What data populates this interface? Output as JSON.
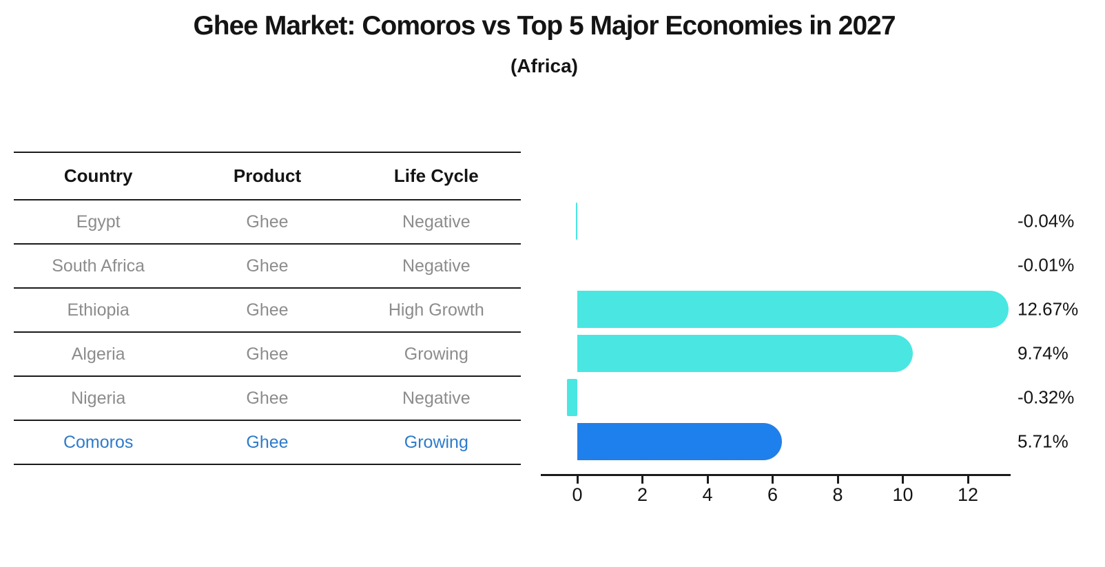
{
  "header": {
    "title": "Ghee Market: Comoros vs Top 5 Major Economies in 2027",
    "subtitle": "(Africa)"
  },
  "table": {
    "columns": [
      "Country",
      "Product",
      "Life Cycle"
    ],
    "rows": [
      {
        "country": "Egypt",
        "product": "Ghee",
        "life_cycle": "Negative",
        "highlight": false
      },
      {
        "country": "South Africa",
        "product": "Ghee",
        "life_cycle": "Negative",
        "highlight": false
      },
      {
        "country": "Ethiopia",
        "product": "Ghee",
        "life_cycle": "High Growth",
        "highlight": false
      },
      {
        "country": "Algeria",
        "product": "Ghee",
        "life_cycle": "Growing",
        "highlight": false
      },
      {
        "country": "Nigeria",
        "product": "Ghee",
        "life_cycle": "Negative",
        "highlight": false
      },
      {
        "country": "Comoros",
        "product": "Ghee",
        "life_cycle": "Growing",
        "highlight": true
      }
    ]
  },
  "chart_data": {
    "type": "bar",
    "orientation": "horizontal",
    "title": "Ghee Market: Comoros vs Top 5 Major Economies in 2027",
    "subtitle": "(Africa)",
    "categories": [
      "Egypt",
      "South Africa",
      "Ethiopia",
      "Algeria",
      "Nigeria",
      "Comoros"
    ],
    "values": [
      -0.04,
      -0.01,
      12.67,
      9.74,
      -0.32,
      5.71
    ],
    "value_labels": [
      "-0.04%",
      "-0.01%",
      "12.67%",
      "9.74%",
      "-0.32%",
      "5.71%"
    ],
    "xlabel": "",
    "ylabel": "",
    "xticks": [
      0,
      2,
      4,
      6,
      8,
      10,
      12
    ],
    "xlim": [
      -1.3,
      13.3
    ],
    "grid": false,
    "legend_position": "none",
    "highlight_category": "Comoros",
    "colors": {
      "bar_default": "#4ae6e2",
      "bar_highlight": "#1e80ec",
      "highlight_text": "#2e7bcb",
      "row_text": "#8c8c8c",
      "axis": "#1a1a1a"
    }
  }
}
